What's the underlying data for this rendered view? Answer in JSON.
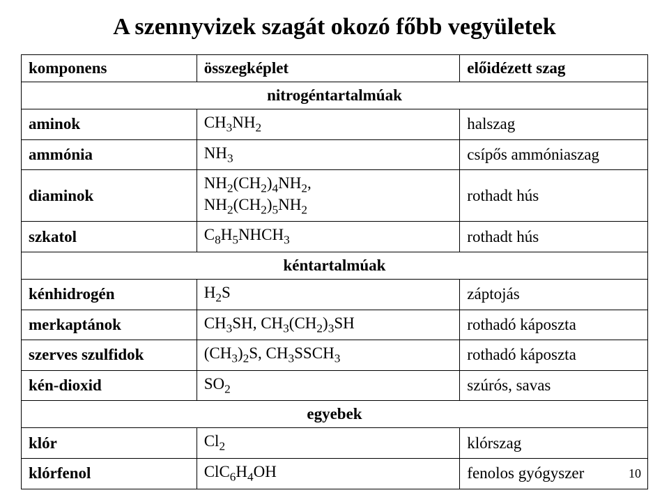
{
  "title": "A szennyvizek szagát okozó főbb vegyületek",
  "headers": {
    "col1": "komponens",
    "col2": "összegképlet",
    "col3": "előidézett szag"
  },
  "sections": [
    {
      "label": "nitrogéntartalmúak",
      "rows": [
        {
          "c1": "aminok",
          "c2": "CH3NH2",
          "c3": "halszag"
        },
        {
          "c1": "ammónia",
          "c2": "NH3",
          "c3": "csípős ammóniaszag"
        },
        {
          "c1": "diaminok",
          "c2": "NH2(CH2)4NH2, NH2(CH2)5NH2",
          "c3": "rothadt hús"
        },
        {
          "c1": "szkatol",
          "c2": "C8H5NHCH3",
          "c3": "rothadt hús"
        }
      ]
    },
    {
      "label": "kéntartalmúak",
      "rows": [
        {
          "c1": "kénhidrogén",
          "c2": "H2S",
          "c3": "záptojás"
        },
        {
          "c1": "merkaptánok",
          "c2": "CH3SH, CH3(CH2)3SH",
          "c3": "rothadó káposzta"
        },
        {
          "c1": "szerves szulfidok",
          "c2": "(CH3)2S, CH3SSCH3",
          "c3": "rothadó káposzta"
        },
        {
          "c1": "kén-dioxid",
          "c2": "SO2",
          "c3": "szúrós, savas"
        }
      ]
    },
    {
      "label": "egyebek",
      "rows": [
        {
          "c1": "klór",
          "c2": "Cl2",
          "c3": "klórszag"
        },
        {
          "c1": "klórfenol",
          "c2": "ClC6H4OH",
          "c3": "fenolos gyógyszer"
        }
      ]
    }
  ],
  "page_number": "10",
  "formula_html": {
    "CH3NH2": "CH<sub>3</sub>NH<sub>2</sub>",
    "NH3": "NH<sub>3</sub>",
    "NH2(CH2)4NH2, NH2(CH2)5NH2": "NH<sub>2</sub>(CH<sub>2</sub>)<sub>4</sub>NH<sub>2</sub>,<br>NH<sub>2</sub>(CH<sub>2</sub>)<sub>5</sub>NH<sub>2</sub>",
    "C8H5NHCH3": "C<sub>8</sub>H<sub>5</sub>NHCH<sub>3</sub>",
    "H2S": "H<sub>2</sub>S",
    "CH3SH, CH3(CH2)3SH": "CH<sub>3</sub>SH, CH<sub>3</sub>(CH<sub>2</sub>)<sub>3</sub>SH",
    "(CH3)2S, CH3SSCH3": "(CH<sub>3</sub>)<sub>2</sub>S, CH<sub>3</sub>SSCH<sub>3</sub>",
    "SO2": "SO<sub>2</sub>",
    "Cl2": "Cl<sub>2</sub>",
    "ClC6H4OH": "ClC<sub>6</sub>H<sub>4</sub>OH"
  }
}
